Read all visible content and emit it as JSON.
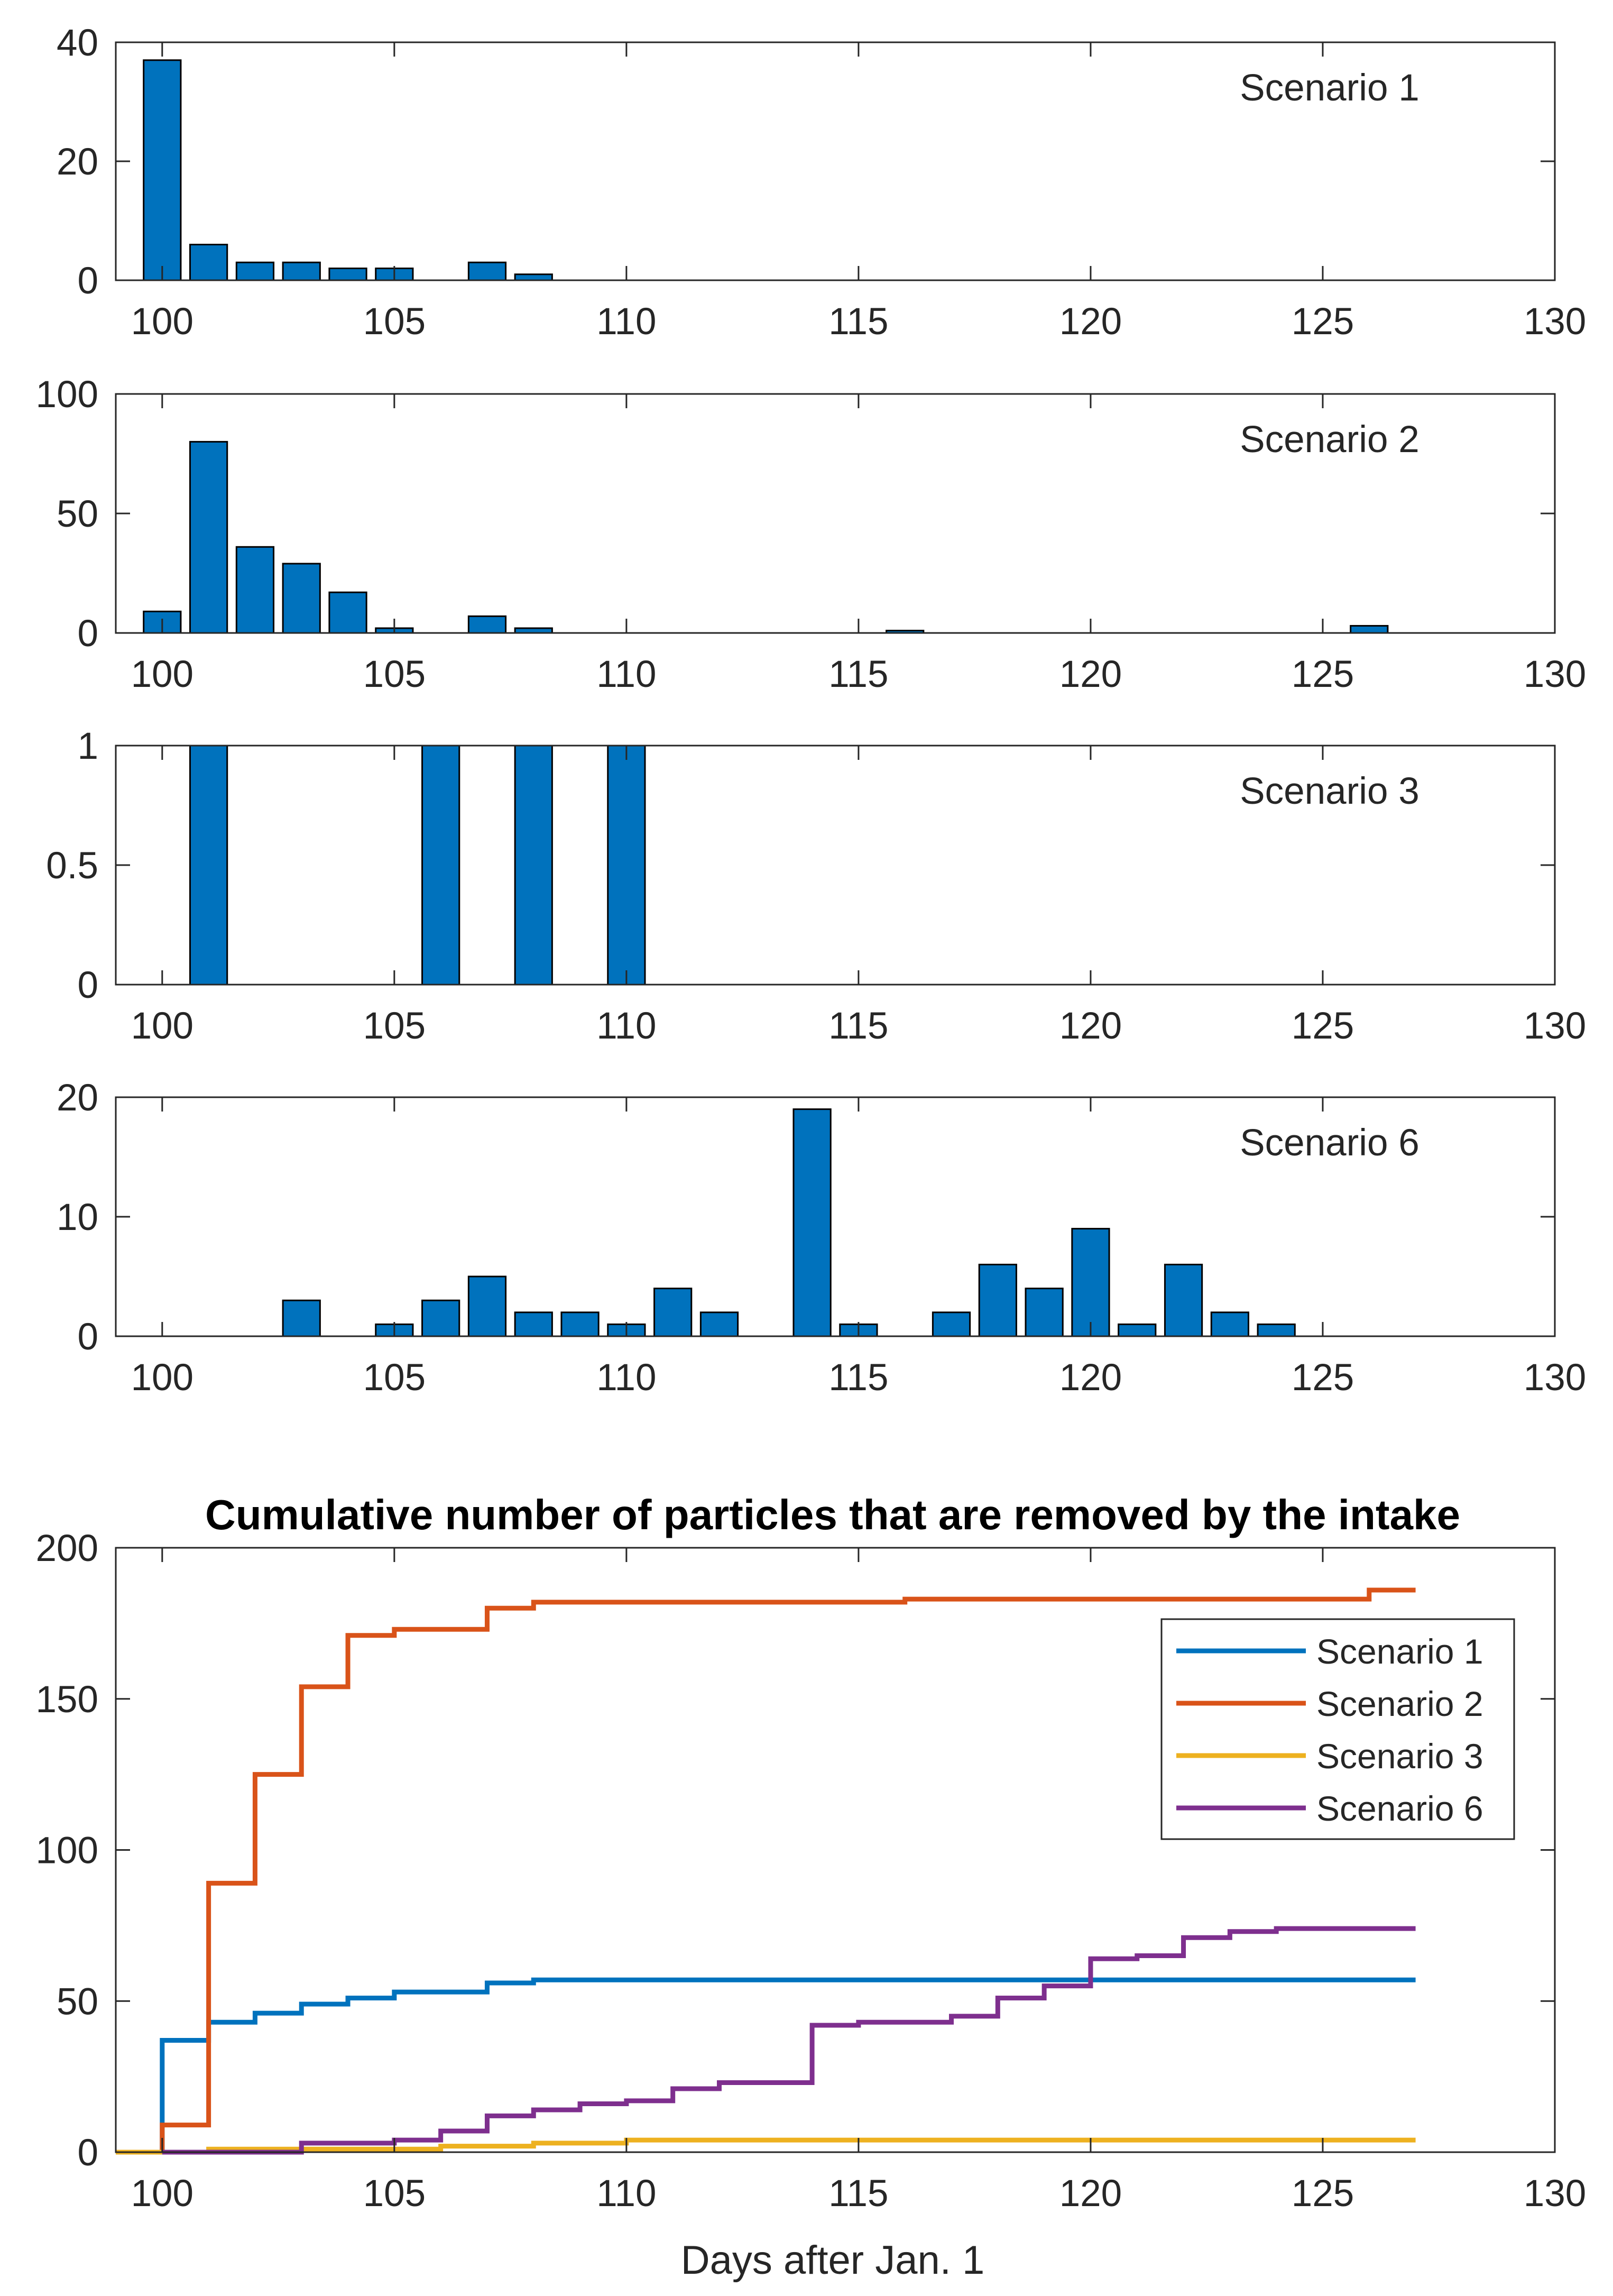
{
  "colors": {
    "bar": "#0072BD",
    "bar_edge": "#000000",
    "axis": "#262626",
    "scenario_1": "#0072BD",
    "scenario_2": "#D95319",
    "scenario_3": "#EDB120",
    "scenario_6": "#7E2F8E"
  },
  "chart_data": [
    {
      "type": "bar",
      "label": "Scenario 1",
      "x": [
        100,
        101,
        102,
        103,
        104,
        105,
        107,
        108
      ],
      "values": [
        37,
        6,
        3,
        3,
        2,
        2,
        3,
        1
      ],
      "xlim": [
        99,
        130
      ],
      "ylim": [
        0,
        40
      ],
      "xticks": [
        100,
        105,
        110,
        115,
        120,
        125,
        130
      ],
      "yticks": [
        0,
        20,
        40
      ]
    },
    {
      "type": "bar",
      "label": "Scenario 2",
      "x": [
        100,
        101,
        102,
        103,
        104,
        105,
        107,
        108,
        116,
        126
      ],
      "values": [
        9,
        80,
        36,
        29,
        17,
        2,
        7,
        2,
        1,
        3
      ],
      "xlim": [
        99,
        130
      ],
      "ylim": [
        0,
        100
      ],
      "xticks": [
        100,
        105,
        110,
        115,
        120,
        125,
        130
      ],
      "yticks": [
        0,
        50,
        100
      ]
    },
    {
      "type": "bar",
      "label": "Scenario 3",
      "x": [
        101,
        106,
        108,
        110
      ],
      "values": [
        1,
        1,
        1,
        1
      ],
      "xlim": [
        99,
        130
      ],
      "ylim": [
        0,
        1
      ],
      "xticks": [
        100,
        105,
        110,
        115,
        120,
        125,
        130
      ],
      "yticks": [
        0,
        0.5,
        1
      ]
    },
    {
      "type": "bar",
      "label": "Scenario 6",
      "x": [
        103,
        105,
        106,
        107,
        108,
        109,
        110,
        111,
        112,
        114,
        115,
        117,
        118,
        119,
        120,
        121,
        122,
        123,
        124
      ],
      "values": [
        3,
        1,
        3,
        5,
        2,
        2,
        1,
        4,
        2,
        19,
        1,
        2,
        6,
        4,
        9,
        1,
        6,
        2,
        1
      ],
      "xlim": [
        99,
        130
      ],
      "ylim": [
        0,
        20
      ],
      "xticks": [
        100,
        105,
        110,
        115,
        120,
        125,
        130
      ],
      "yticks": [
        0,
        10,
        20
      ]
    },
    {
      "type": "line",
      "step": true,
      "title": "Cumulative number of particles that are removed by the intake",
      "xlabel": "Days after Jan. 1",
      "ylabel": "",
      "xlim": [
        99,
        130
      ],
      "ylim": [
        0,
        200
      ],
      "xticks": [
        100,
        105,
        110,
        115,
        120,
        125,
        130
      ],
      "yticks": [
        0,
        50,
        100,
        150,
        200
      ],
      "legend_position": "top-right",
      "series": [
        {
          "name": "Scenario 1",
          "color_key": "scenario_1",
          "x": [
            100,
            101,
            102,
            103,
            104,
            105,
            106,
            107,
            108,
            109,
            110,
            111,
            112,
            113,
            114,
            115,
            116,
            117,
            118,
            119,
            120,
            121,
            122,
            123,
            124,
            125,
            126,
            127
          ],
          "values": [
            37,
            43,
            46,
            49,
            51,
            53,
            53,
            56,
            57,
            57,
            57,
            57,
            57,
            57,
            57,
            57,
            57,
            57,
            57,
            57,
            57,
            57,
            57,
            57,
            57,
            57,
            57,
            57
          ]
        },
        {
          "name": "Scenario 2",
          "color_key": "scenario_2",
          "x": [
            100,
            101,
            102,
            103,
            104,
            105,
            106,
            107,
            108,
            109,
            110,
            111,
            112,
            113,
            114,
            115,
            116,
            117,
            118,
            119,
            120,
            121,
            122,
            123,
            124,
            125,
            126,
            127
          ],
          "values": [
            9,
            89,
            125,
            154,
            171,
            173,
            173,
            180,
            182,
            182,
            182,
            182,
            182,
            182,
            182,
            182,
            183,
            183,
            183,
            183,
            183,
            183,
            183,
            183,
            183,
            183,
            186,
            186
          ]
        },
        {
          "name": "Scenario 3",
          "color_key": "scenario_3",
          "x": [
            99,
            100,
            101,
            102,
            103,
            104,
            105,
            106,
            107,
            108,
            109,
            110,
            111,
            112,
            113,
            114,
            115,
            116,
            117,
            118,
            119,
            120,
            121,
            122,
            123,
            124,
            125,
            126,
            127
          ],
          "values": [
            0,
            0,
            1,
            1,
            1,
            1,
            1,
            2,
            2,
            3,
            3,
            4,
            4,
            4,
            4,
            4,
            4,
            4,
            4,
            4,
            4,
            4,
            4,
            4,
            4,
            4,
            4,
            4,
            4
          ]
        },
        {
          "name": "Scenario 6",
          "color_key": "scenario_6",
          "x": [
            100,
            101,
            102,
            103,
            104,
            105,
            106,
            107,
            108,
            109,
            110,
            111,
            112,
            113,
            114,
            115,
            116,
            117,
            118,
            119,
            120,
            121,
            122,
            123,
            124,
            125,
            126,
            127
          ],
          "values": [
            0,
            0,
            0,
            3,
            3,
            4,
            7,
            12,
            14,
            16,
            17,
            21,
            23,
            23,
            42,
            43,
            43,
            45,
            51,
            55,
            64,
            65,
            71,
            73,
            74,
            74,
            74,
            74
          ]
        }
      ]
    }
  ]
}
